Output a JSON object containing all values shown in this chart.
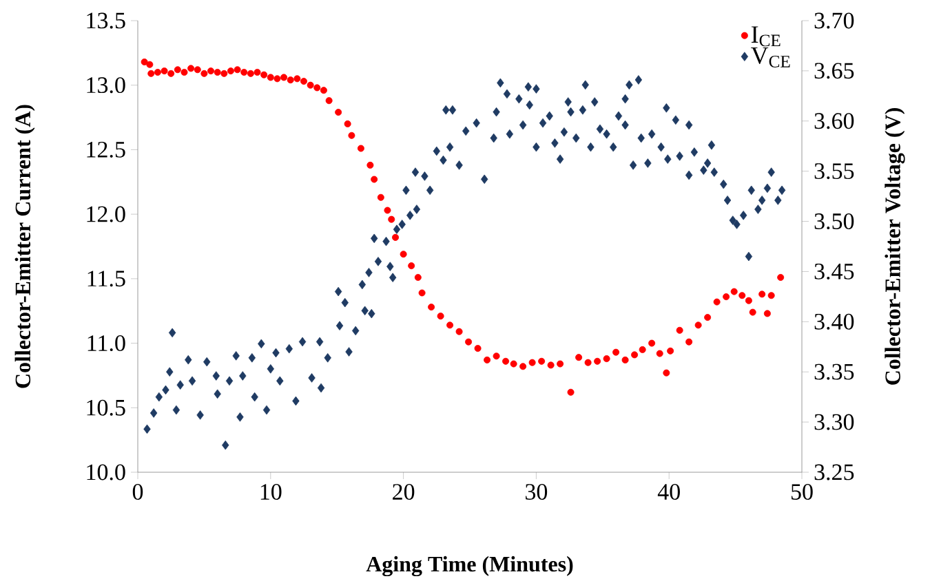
{
  "chart_data": {
    "type": "scatter",
    "xlabel": "Aging Time (Minutes)",
    "ylabel": "Collector-Emitter Current (A)",
    "y2label": "Collector-Emitter Voltage (V)",
    "xlim": [
      0,
      50
    ],
    "xticks": [
      0,
      10,
      20,
      30,
      40,
      50
    ],
    "ylim": [
      10,
      13.5
    ],
    "yticks": [
      {
        "value": 10,
        "label": "10.0"
      },
      {
        "value": 10.5,
        "label": "10.5"
      },
      {
        "value": 11,
        "label": "11.0"
      },
      {
        "value": 11.5,
        "label": "11.5"
      },
      {
        "value": 12,
        "label": "12.0"
      },
      {
        "value": 12.5,
        "label": "12.5"
      },
      {
        "value": 13,
        "label": "13.0"
      },
      {
        "value": 13.5,
        "label": "13.5"
      }
    ],
    "y2lim": [
      3.25,
      3.7
    ],
    "y2ticks": [
      {
        "value": 3.25,
        "label": "3.25"
      },
      {
        "value": 3.3,
        "label": "3.30"
      },
      {
        "value": 3.35,
        "label": "3.35"
      },
      {
        "value": 3.4,
        "label": "3.40"
      },
      {
        "value": 3.45,
        "label": "3.45"
      },
      {
        "value": 3.5,
        "label": "3.50"
      },
      {
        "value": 3.55,
        "label": "3.55"
      },
      {
        "value": 3.6,
        "label": "3.60"
      },
      {
        "value": 3.65,
        "label": "3.65"
      },
      {
        "value": 3.7,
        "label": "3.70"
      }
    ],
    "legend": "top right",
    "series": [
      {
        "name": "I$_{CE}$",
        "color": "#ff0000",
        "marker": "circle",
        "x": [
          0.5,
          0.9,
          1.0,
          1.5,
          2.0,
          2.5,
          3.0,
          3.5,
          4.0,
          4.5,
          5.0,
          5.5,
          6.0,
          6.5,
          7.0,
          7.5,
          8.0,
          8.5,
          9.0,
          9.5,
          10.0,
          10.5,
          11.0,
          11.5,
          12.0,
          12.5,
          13.0,
          13.5,
          14.0,
          14.4,
          15.1,
          15.8,
          16.1,
          16.8,
          17.5,
          17.8,
          18.3,
          18.8,
          19.1,
          19.4,
          20.0,
          20.6,
          21.1,
          21.4,
          22.1,
          22.8,
          23.5,
          24.2,
          24.9,
          25.6,
          26.3,
          27.0,
          27.7,
          28.3,
          29.0,
          29.7,
          30.4,
          31.1,
          31.8,
          32.6,
          33.2,
          33.9,
          34.6,
          35.3,
          36.0,
          36.7,
          37.4,
          38.0,
          38.7,
          39.3,
          39.8,
          40.1,
          40.8,
          41.5,
          42.2,
          42.9,
          43.6,
          44.3,
          44.9,
          45.5,
          46.0,
          46.3,
          47.0,
          47.4,
          47.7,
          48.4
        ],
        "values": [
          13.18,
          13.16,
          13.09,
          13.1,
          13.11,
          13.09,
          13.12,
          13.1,
          13.13,
          13.12,
          13.09,
          13.11,
          13.1,
          13.09,
          13.11,
          13.12,
          13.1,
          13.09,
          13.1,
          13.08,
          13.06,
          13.05,
          13.06,
          13.04,
          13.05,
          13.03,
          13.0,
          12.98,
          12.96,
          12.88,
          12.79,
          12.7,
          12.61,
          12.51,
          12.38,
          12.27,
          12.13,
          12.03,
          11.96,
          11.82,
          11.69,
          11.6,
          11.51,
          11.39,
          11.28,
          11.21,
          11.14,
          11.09,
          11.01,
          10.96,
          10.87,
          10.9,
          10.86,
          10.84,
          10.82,
          10.85,
          10.86,
          10.83,
          10.84,
          10.62,
          10.89,
          10.85,
          10.86,
          10.88,
          10.93,
          10.87,
          10.91,
          10.95,
          11.0,
          10.92,
          10.77,
          10.94,
          11.1,
          11.01,
          11.14,
          11.2,
          11.32,
          11.36,
          11.4,
          11.37,
          11.33,
          11.24,
          11.38,
          11.23,
          11.37,
          11.51
        ]
      },
      {
        "name": "V$_{CE}$",
        "color": "#1f3b63",
        "marker": "diamond",
        "axis": "y2",
        "x": [
          0.7,
          1.2,
          1.6,
          2.1,
          2.4,
          2.6,
          2.9,
          3.2,
          3.8,
          4.1,
          4.7,
          5.2,
          5.9,
          6.0,
          6.6,
          6.9,
          7.4,
          7.7,
          7.9,
          8.6,
          8.8,
          9.3,
          9.7,
          10.0,
          10.4,
          10.7,
          11.4,
          11.9,
          12.4,
          13.1,
          13.7,
          13.8,
          14.3,
          15.1,
          15.2,
          15.6,
          15.9,
          16.4,
          16.9,
          17.1,
          17.4,
          17.6,
          17.8,
          18.1,
          18.7,
          19.0,
          19.2,
          19.5,
          19.9,
          20.2,
          20.5,
          20.9,
          21.0,
          21.6,
          22.0,
          22.5,
          23.0,
          23.2,
          23.5,
          23.7,
          24.2,
          24.7,
          25.5,
          26.1,
          26.8,
          27.0,
          27.3,
          27.8,
          28.0,
          28.7,
          29.0,
          29.4,
          29.5,
          30.0,
          30.0,
          30.5,
          31.0,
          31.4,
          31.8,
          32.1,
          32.4,
          32.6,
          33.0,
          33.5,
          33.7,
          34.1,
          34.4,
          34.8,
          35.3,
          35.8,
          36.2,
          36.7,
          36.7,
          37.0,
          37.3,
          37.7,
          37.9,
          38.4,
          38.7,
          39.4,
          39.8,
          39.9,
          40.5,
          40.8,
          41.5,
          41.5,
          41.9,
          42.6,
          42.9,
          43.2,
          43.4,
          44.1,
          44.4,
          44.8,
          45.1,
          45.6,
          46.0,
          46.2,
          46.7,
          47.0,
          47.4,
          47.7,
          48.2,
          48.5
        ],
        "values": [
          3.293,
          3.309,
          3.325,
          3.332,
          3.35,
          3.389,
          3.312,
          3.337,
          3.362,
          3.341,
          3.307,
          3.36,
          3.346,
          3.328,
          3.277,
          3.341,
          3.366,
          3.305,
          3.346,
          3.364,
          3.325,
          3.378,
          3.312,
          3.353,
          3.369,
          3.341,
          3.373,
          3.321,
          3.38,
          3.344,
          3.38,
          3.334,
          3.364,
          3.43,
          3.396,
          3.419,
          3.37,
          3.391,
          3.437,
          3.411,
          3.449,
          3.408,
          3.483,
          3.46,
          3.48,
          3.455,
          3.444,
          3.492,
          3.497,
          3.531,
          3.506,
          3.549,
          3.512,
          3.545,
          3.531,
          3.57,
          3.561,
          3.611,
          3.574,
          3.611,
          3.556,
          3.59,
          3.598,
          3.542,
          3.583,
          3.609,
          3.638,
          3.627,
          3.587,
          3.622,
          3.596,
          3.634,
          3.616,
          3.632,
          3.574,
          3.598,
          3.605,
          3.578,
          3.562,
          3.589,
          3.619,
          3.609,
          3.583,
          3.611,
          3.636,
          3.574,
          3.619,
          3.592,
          3.587,
          3.574,
          3.605,
          3.596,
          3.622,
          3.636,
          3.556,
          3.641,
          3.583,
          3.558,
          3.587,
          3.574,
          3.613,
          3.562,
          3.601,
          3.565,
          3.596,
          3.546,
          3.569,
          3.551,
          3.558,
          3.576,
          3.549,
          3.537,
          3.521,
          3.501,
          3.497,
          3.506,
          3.465,
          3.531,
          3.512,
          3.521,
          3.533,
          3.549,
          3.521,
          3.531
        ]
      }
    ]
  }
}
